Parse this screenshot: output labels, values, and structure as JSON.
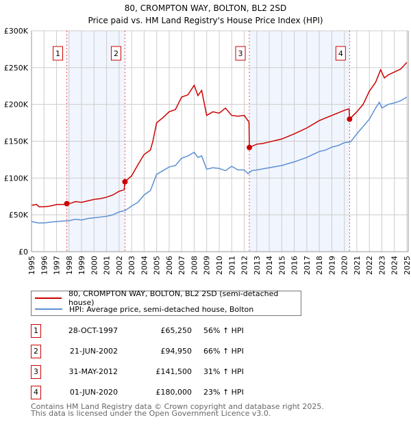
{
  "chart_data": {
    "type": "line",
    "title": "80, CROMPTON WAY, BOLTON, BL2 2SD",
    "subtitle": "Price paid vs. HM Land Registry's House Price Index (HPI)",
    "xlim": [
      1995,
      2025
    ],
    "ylim": [
      0,
      300000
    ],
    "y_ticks": [
      {
        "v": 0,
        "label": "£0"
      },
      {
        "v": 50000,
        "label": "£50K"
      },
      {
        "v": 100000,
        "label": "£100K"
      },
      {
        "v": 150000,
        "label": "£150K"
      },
      {
        "v": 200000,
        "label": "£200K"
      },
      {
        "v": 250000,
        "label": "£250K"
      },
      {
        "v": 300000,
        "label": "£300K"
      }
    ],
    "x_ticks": [
      "1995",
      "1996",
      "1997",
      "1998",
      "1999",
      "2000",
      "2001",
      "2002",
      "2003",
      "2004",
      "2005",
      "2006",
      "2007",
      "2008",
      "2009",
      "2010",
      "2011",
      "2012",
      "2013",
      "2014",
      "2015",
      "2016",
      "2017",
      "2018",
      "2019",
      "2020",
      "2021",
      "2022",
      "2023",
      "2024",
      "2025"
    ],
    "grid": true,
    "shaded_ranges": [
      [
        1997.82,
        2002.47
      ],
      [
        2012.41,
        2020.42
      ]
    ],
    "series": [
      {
        "name": "80, CROMPTON WAY, BOLTON, BL2 2SD (semi-detached house)",
        "color": "#cc0000",
        "x": [
          1995,
          1995.4,
          1995.6,
          1996,
          1996.5,
          1997,
          1997.5,
          1997.82,
          1998.2,
          1998.5,
          1999,
          1999.5,
          2000,
          2000.5,
          2001,
          2001.5,
          2002,
          2002.4,
          2002.47,
          2003,
          2003.5,
          2004,
          2004.5,
          2004.7,
          2005,
          2005.5,
          2006,
          2006.5,
          2007,
          2007.5,
          2008,
          2008.3,
          2008.6,
          2009,
          2009.5,
          2010,
          2010.5,
          2011,
          2011.5,
          2012,
          2012.38,
          2012.41,
          2013,
          2013.5,
          2014,
          2015,
          2016,
          2017,
          2018,
          2019,
          2020,
          2020.38,
          2020.42,
          2021,
          2021.5,
          2022,
          2022.5,
          2022.9,
          2023.2,
          2023.5,
          2024,
          2024.5,
          2025
        ],
        "y": [
          63000,
          64000,
          61000,
          61000,
          62000,
          64000,
          64000,
          65250,
          66000,
          68000,
          67000,
          69000,
          71000,
          72000,
          74000,
          77000,
          82000,
          84000,
          94950,
          103000,
          118000,
          132000,
          138000,
          150000,
          175000,
          182000,
          190000,
          193000,
          210000,
          213000,
          226000,
          212000,
          219000,
          185000,
          190000,
          188000,
          195000,
          185000,
          184000,
          185000,
          176000,
          141500,
          146000,
          147000,
          149000,
          153000,
          160000,
          168000,
          178000,
          185000,
          192000,
          194000,
          180000,
          190000,
          200000,
          218000,
          230000,
          247000,
          236000,
          240000,
          244000,
          248000,
          257000
        ]
      },
      {
        "name": "HPI: Average price, semi-detached house, Bolton",
        "color": "#5b8fd4",
        "x": [
          1995,
          1995.5,
          1996,
          1997,
          1998,
          1998.5,
          1999,
          1999.5,
          2000,
          2001,
          2001.5,
          2002,
          2002.5,
          2003,
          2003.5,
          2004,
          2004.5,
          2005,
          2005.5,
          2006,
          2006.5,
          2007,
          2007.5,
          2008,
          2008.3,
          2008.6,
          2009,
          2009.5,
          2010,
          2010.5,
          2011,
          2011.5,
          2012,
          2012.3,
          2012.6,
          2013,
          2014,
          2015,
          2016,
          2016.5,
          2017,
          2018,
          2018.5,
          2019,
          2019.5,
          2020,
          2020.5,
          2021,
          2021.5,
          2022,
          2022.5,
          2022.8,
          2023,
          2023.5,
          2024,
          2024.5,
          2025
        ],
        "y": [
          41000,
          39000,
          39000,
          41000,
          42000,
          44000,
          43000,
          45000,
          46000,
          48000,
          50000,
          54000,
          56000,
          62000,
          67000,
          77000,
          83000,
          105000,
          110000,
          115000,
          117000,
          127000,
          130000,
          135000,
          128000,
          130000,
          112000,
          114000,
          113000,
          110000,
          116000,
          111000,
          111000,
          106000,
          110000,
          111000,
          114000,
          117000,
          122000,
          125000,
          128000,
          136000,
          138000,
          142000,
          144000,
          148000,
          149000,
          160000,
          170000,
          180000,
          195000,
          203000,
          195000,
          200000,
          202000,
          205000,
          210000
        ]
      }
    ],
    "sales": [
      {
        "n": "1",
        "x": 1997.82,
        "y": 65250
      },
      {
        "n": "2",
        "x": 2002.47,
        "y": 94950
      },
      {
        "n": "3",
        "x": 2012.41,
        "y": 141500
      },
      {
        "n": "4",
        "x": 2020.42,
        "y": 180000
      }
    ],
    "legend_position": "below"
  },
  "legend": [
    "80, CROMPTON WAY, BOLTON, BL2 2SD (semi-detached house)",
    "HPI: Average price, semi-detached house, Bolton"
  ],
  "table": [
    {
      "n": "1",
      "date": "28-OCT-1997",
      "price": "£65,250",
      "hpi": "56% ↑ HPI"
    },
    {
      "n": "2",
      "date": "21-JUN-2002",
      "price": "£94,950",
      "hpi": "66% ↑ HPI"
    },
    {
      "n": "3",
      "date": "31-MAY-2012",
      "price": "£141,500",
      "hpi": "31% ↑ HPI"
    },
    {
      "n": "4",
      "date": "01-JUN-2020",
      "price": "£180,000",
      "hpi": "23% ↑ HPI"
    }
  ],
  "footer": [
    "Contains HM Land Registry data © Crown copyright and database right 2025.",
    "This data is licensed under the Open Government Licence v3.0."
  ]
}
